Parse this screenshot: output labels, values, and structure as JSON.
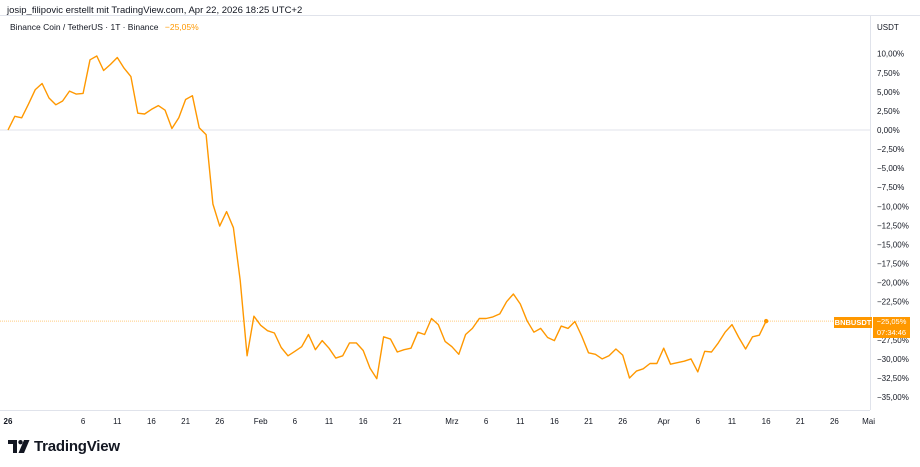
{
  "header": {
    "text": "josip_filipovic erstellt mit TradingView.com, Apr 22, 2026 18:25 UTC+2"
  },
  "legend": {
    "symbol": "Binance Coin / TetherUS · 1T · Binance",
    "change": "−25,05%"
  },
  "y_axis_unit": "USDT",
  "price_tag": {
    "symbol": "BNBUSDT",
    "value": "−25,05%",
    "countdown": "07:34:46"
  },
  "logo": {
    "text": "TradingView"
  },
  "colors": {
    "line": "#ff9800",
    "zero_line": "#e0e3eb",
    "last_line": "#ffcc80",
    "tag": "#ff9800"
  },
  "chart_data": {
    "type": "line",
    "title": "Binance Coin / TetherUS · 1T · Binance",
    "ylabel": "USDT",
    "ylim": [
      -36.5,
      12.5
    ],
    "grid": false,
    "y_ticks": [
      10,
      7.5,
      5,
      2.5,
      0,
      -2.5,
      -5,
      -7.5,
      -10,
      -12.5,
      -15,
      -17.5,
      -20,
      -22.5,
      -25,
      -27.5,
      -30,
      -32.5,
      -35
    ],
    "y_tick_labels": [
      "10,00%",
      "7,50%",
      "5,00%",
      "2,50%",
      "0,00%",
      "−2,50%",
      "−5,00%",
      "−7,50%",
      "−10,00%",
      "−12,50%",
      "−15,00%",
      "−17,50%",
      "−20,00%",
      "−22,50%",
      "−25,00%",
      "−27,50%",
      "−30,00%",
      "−32,50%",
      "−35,00%"
    ],
    "x_ticks": [
      {
        "label": "26",
        "day": 0,
        "bold": true
      },
      {
        "label": "6",
        "day": 11
      },
      {
        "label": "11",
        "day": 16
      },
      {
        "label": "16",
        "day": 21
      },
      {
        "label": "21",
        "day": 26
      },
      {
        "label": "26",
        "day": 31
      },
      {
        "label": "Feb",
        "day": 37
      },
      {
        "label": "6",
        "day": 42
      },
      {
        "label": "11",
        "day": 47
      },
      {
        "label": "16",
        "day": 52
      },
      {
        "label": "21",
        "day": 57
      },
      {
        "label": "Mrz",
        "day": 65
      },
      {
        "label": "6",
        "day": 70
      },
      {
        "label": "11",
        "day": 75
      },
      {
        "label": "16",
        "day": 80
      },
      {
        "label": "21",
        "day": 85
      },
      {
        "label": "26",
        "day": 90
      },
      {
        "label": "Apr",
        "day": 96
      },
      {
        "label": "6",
        "day": 101
      },
      {
        "label": "11",
        "day": 106
      },
      {
        "label": "16",
        "day": 111
      },
      {
        "label": "21",
        "day": 116
      },
      {
        "label": "26",
        "day": 121
      },
      {
        "label": "Mai",
        "day": 126
      }
    ],
    "x_range": [
      0,
      128
    ],
    "series": [
      {
        "values": [
          0.0,
          1.8,
          1.6,
          3.4,
          5.3,
          6.1,
          4.2,
          3.3,
          3.8,
          5.1,
          4.7,
          4.8,
          9.2,
          9.7,
          7.8,
          8.6,
          9.5,
          8.1,
          7.0,
          2.2,
          2.1,
          2.7,
          3.2,
          2.6,
          0.2,
          1.6,
          4.0,
          4.5,
          0.3,
          -0.6,
          -9.7,
          -12.6,
          -10.7,
          -12.8,
          -19.7,
          -29.6,
          -24.4,
          -25.6,
          -26.3,
          -26.6,
          -28.5,
          -29.6,
          -29.0,
          -28.4,
          -26.8,
          -28.8,
          -27.6,
          -28.6,
          -29.9,
          -29.6,
          -27.9,
          -27.9,
          -28.9,
          -31.2,
          -32.6,
          -27.1,
          -27.4,
          -29.1,
          -28.8,
          -28.6,
          -26.5,
          -26.8,
          -24.7,
          -25.5,
          -27.7,
          -28.4,
          -29.4,
          -26.8,
          -26.0,
          -24.7,
          -24.7,
          -24.5,
          -24.1,
          -22.5,
          -21.5,
          -22.8,
          -25.0,
          -26.5,
          -26.0,
          -27.2,
          -27.6,
          -25.7,
          -26.0,
          -25.1,
          -27.0,
          -29.2,
          -29.4,
          -30.0,
          -29.6,
          -28.7,
          -29.5,
          -32.5,
          -31.6,
          -31.3,
          -30.6,
          -30.6,
          -28.6,
          -30.7,
          -30.5,
          -30.3,
          -30.0,
          -31.7,
          -29.0,
          -29.1,
          -27.9,
          -26.5,
          -25.5,
          -27.2,
          -28.7,
          -27.1,
          -26.9,
          -25.05
        ]
      }
    ]
  }
}
